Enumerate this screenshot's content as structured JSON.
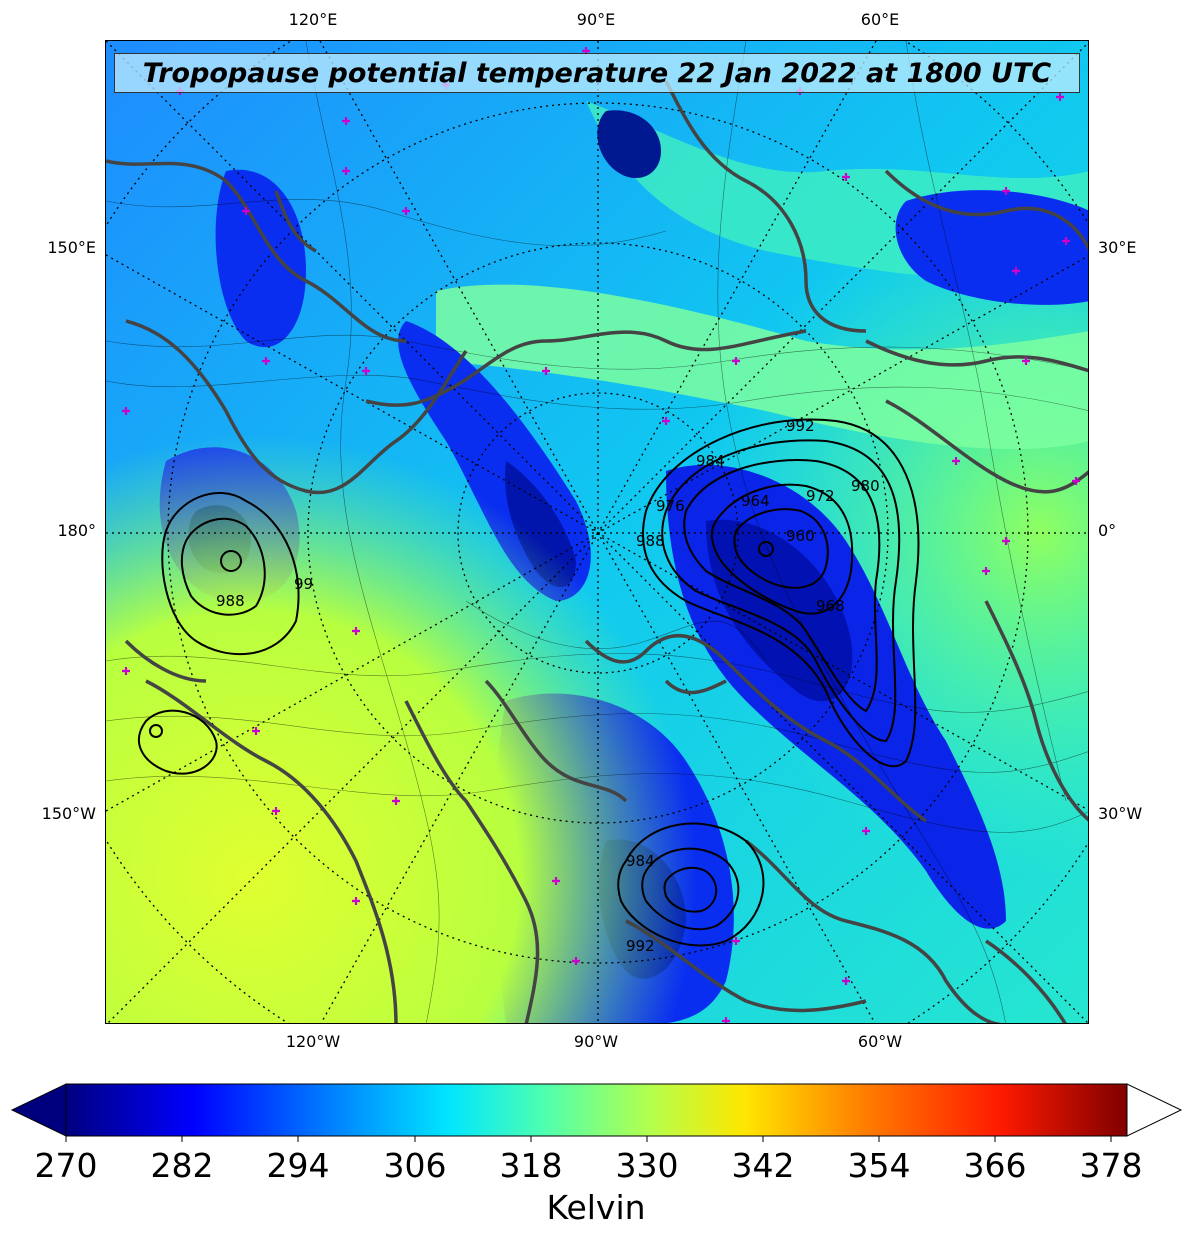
{
  "title": "Tropopause potential temperature 22 Jan 2022 at 1800 UTC",
  "longitude_labels": {
    "top": [
      "120°E",
      "90°E",
      "60°E"
    ],
    "bottom": [
      "120°W",
      "90°W",
      "60°W"
    ]
  },
  "latitude_labels": {
    "left": [
      "150°E",
      "180°",
      "150°W"
    ],
    "right": [
      "30°E",
      "0°",
      "30°W"
    ]
  },
  "pressure_contour_labels": [
    "992",
    "984",
    "976",
    "972",
    "968",
    "964",
    "960",
    "980",
    "988",
    "99",
    "988",
    "992",
    "984"
  ],
  "colorbar": {
    "ticks": [
      "270",
      "282",
      "294",
      "306",
      "318",
      "330",
      "342",
      "354",
      "366",
      "378"
    ],
    "label": "Kelvin",
    "colormap": [
      "#00007f",
      "#0000ff",
      "#0080ff",
      "#00e5ff",
      "#4dffb0",
      "#b3ff4d",
      "#ffe600",
      "#ff8000",
      "#ff1a00",
      "#800000"
    ]
  },
  "colors": {
    "coastline": "#444444",
    "station_marker": "#cc00cc",
    "contour": "#000000"
  }
}
